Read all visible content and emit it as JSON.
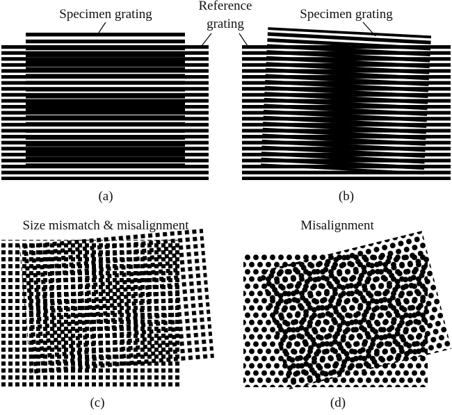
{
  "panels": [
    {
      "label": "(a)",
      "annotation": "Specimen grating"
    },
    {
      "label": "(b)",
      "annotation": "Specimen grating"
    },
    {
      "label": "(c)",
      "title": "Size mismatch & misalignment"
    },
    {
      "label": "(d)",
      "title": "Misalignment"
    }
  ],
  "shared_annotation": {
    "lines": [
      "Reference",
      "grating"
    ]
  }
}
